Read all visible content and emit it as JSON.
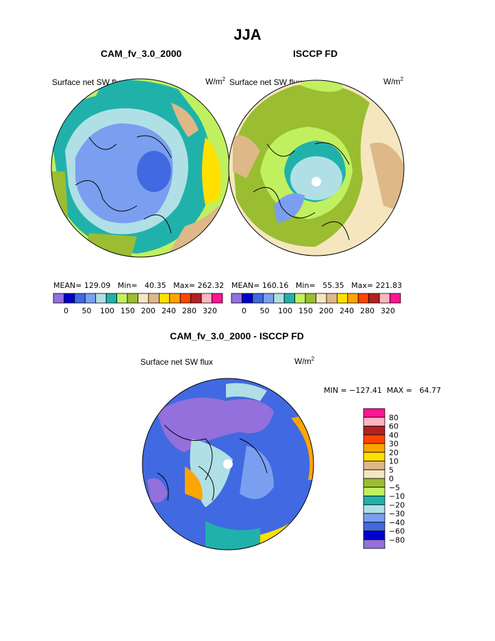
{
  "title": "JJA",
  "panels": [
    {
      "subtitle": "CAM_fv_3.0_2000",
      "variable": "Surface net SW flux",
      "units": "W/m",
      "units_sup": "2",
      "stats": {
        "mean_label": "MEAN=",
        "mean": "129.09",
        "min_label": "Min=",
        "min": "40.35",
        "max_label": "Max=",
        "max": "262.32"
      }
    },
    {
      "subtitle": "ISCCP FD",
      "variable": "Surface net SW flux",
      "units": "W/m",
      "units_sup": "2",
      "stats": {
        "mean_label": "MEAN=",
        "mean": "160.16",
        "min_label": "Min=",
        "min": "55.35",
        "max_label": "Max=",
        "max": "221.83"
      }
    }
  ],
  "diff_panel": {
    "subtitle": "CAM_fv_3.0_2000 - ISCCP FD",
    "variable": "Surface net SW flux",
    "units": "W/m",
    "units_sup": "2",
    "minmax": "MIN = −127.41  MAX =   64.77"
  },
  "chart_data": [
    {
      "type": "heatmap",
      "title": "CAM_fv_3.0_2000",
      "projection": "north-polar-stereographic",
      "colorbar": {
        "orientation": "horizontal",
        "colors": [
          "#9370db",
          "#0000cd",
          "#4169e1",
          "#7b9ff0",
          "#b0e0e6",
          "#20b2aa",
          "#c0f060",
          "#9abd32",
          "#f5e6c0",
          "#deb887",
          "#ffe000",
          "#ffa500",
          "#ff4500",
          "#b22222",
          "#ffb6c1",
          "#ff1493"
        ],
        "labels": [
          "0",
          "50",
          "100",
          "150",
          "200",
          "240",
          "280",
          "320"
        ]
      }
    },
    {
      "type": "heatmap",
      "title": "ISCCP FD",
      "projection": "north-polar-stereographic",
      "colorbar": {
        "orientation": "horizontal",
        "colors": [
          "#9370db",
          "#0000cd",
          "#4169e1",
          "#7b9ff0",
          "#b0e0e6",
          "#20b2aa",
          "#c0f060",
          "#9abd32",
          "#f5e6c0",
          "#deb887",
          "#ffe000",
          "#ffa500",
          "#ff4500",
          "#b22222",
          "#ffb6c1",
          "#ff1493"
        ],
        "labels": [
          "0",
          "50",
          "100",
          "150",
          "200",
          "240",
          "280",
          "320"
        ]
      }
    },
    {
      "type": "heatmap",
      "title": "CAM_fv_3.0_2000 - ISCCP FD",
      "projection": "north-polar-stereographic",
      "colorbar": {
        "orientation": "vertical",
        "colors": [
          "#ff1493",
          "#ffb6c1",
          "#b22222",
          "#ff4500",
          "#ffa500",
          "#ffe000",
          "#deb887",
          "#f5e6c0",
          "#9abd32",
          "#c0f060",
          "#20b2aa",
          "#b0e0e6",
          "#7b9ff0",
          "#4169e1",
          "#0000cd",
          "#9370db"
        ],
        "labels": [
          "80",
          "60",
          "40",
          "30",
          "20",
          "10",
          "5",
          "0",
          "−5",
          "−10",
          "−20",
          "−30",
          "−40",
          "−60",
          "−80"
        ]
      }
    }
  ]
}
